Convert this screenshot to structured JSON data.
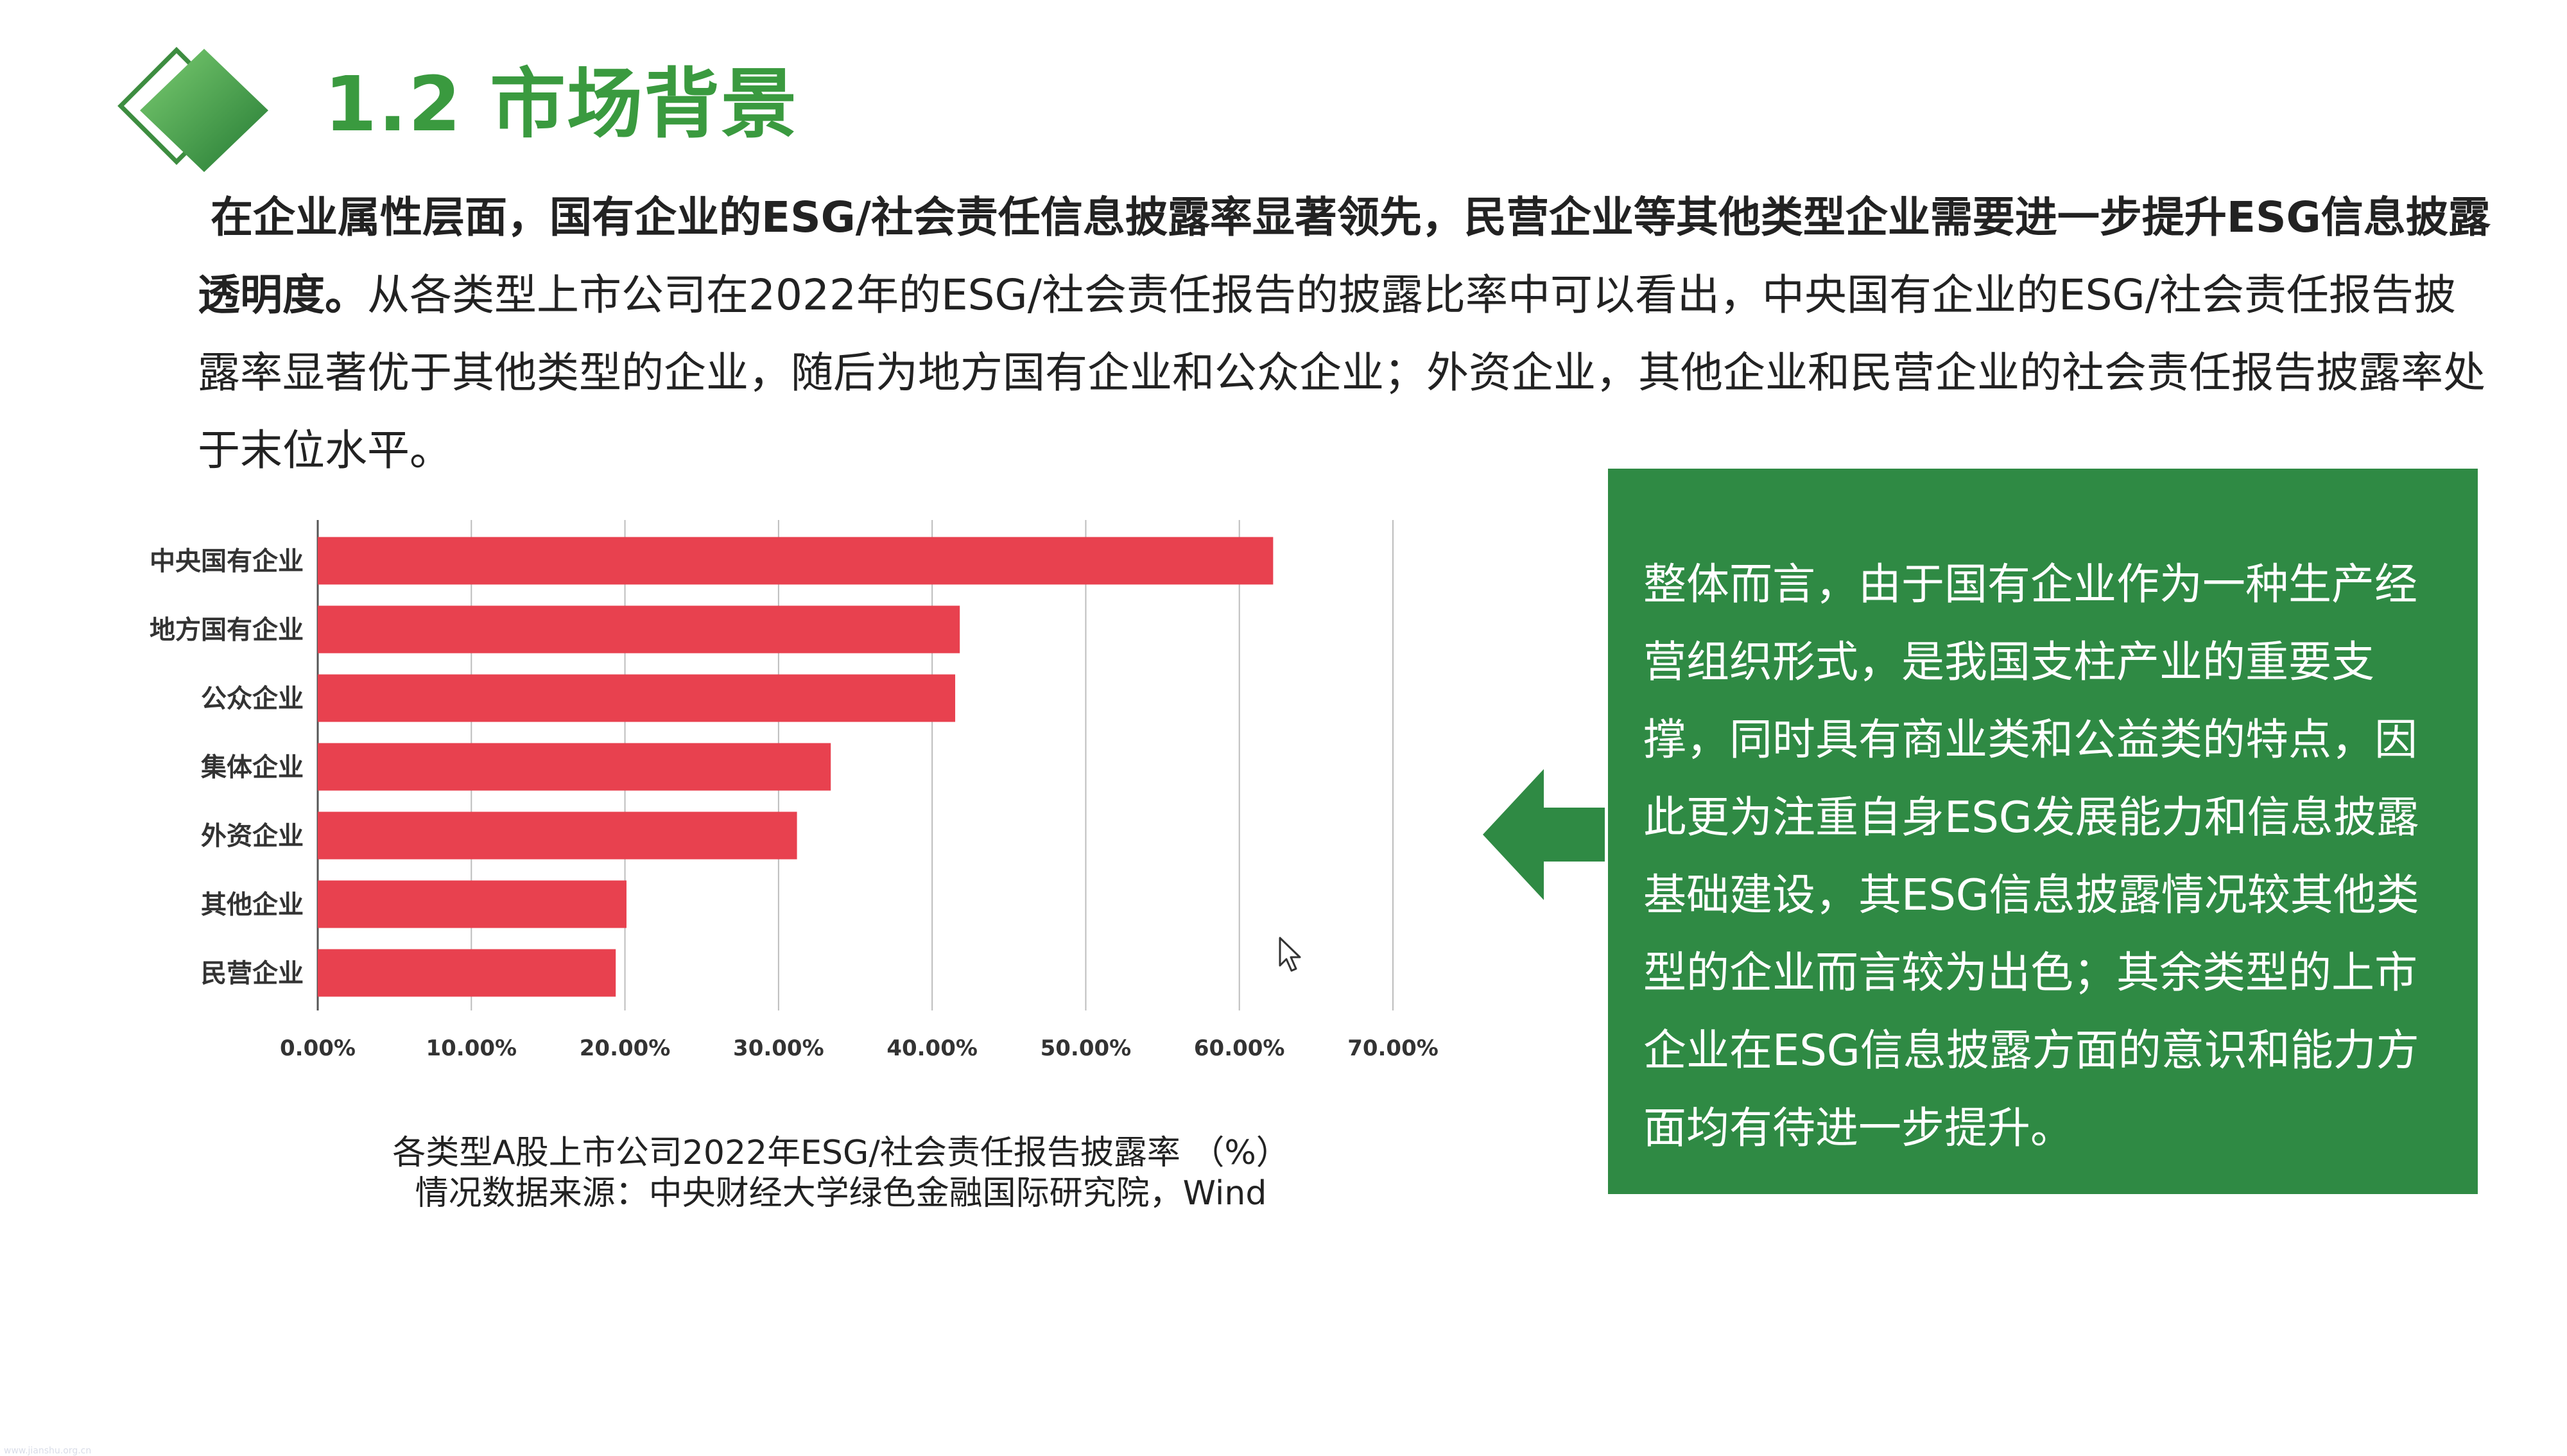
{
  "header": {
    "title": "1.2 市场背景"
  },
  "intro": {
    "bold_text": "在企业属性层面，国有企业的ESG/社会责任信息披露率显著领先，民营企业等其他类型企业需要进一步提升ESG信息披露透明度。",
    "body_text": "从各类型上市公司在2022年的ESG/社会责任报告的披露比率中可以看出，中央国有企业的ESG/社会责任报告披露率显著优于其他类型的企业，随后为地方国有企业和公众企业；外资企业，其他企业和民营企业的社会责任报告披露率处于末位水平。"
  },
  "chart_data": {
    "type": "bar",
    "orientation": "horizontal",
    "categories": [
      "中央国有企业",
      "地方国有企业",
      "公众企业",
      "集体企业",
      "外资企业",
      "其他企业",
      "民营企业"
    ],
    "values": [
      62.2,
      41.8,
      41.5,
      33.4,
      31.2,
      20.1,
      19.4
    ],
    "x_ticks": [
      "0.00%",
      "10.00%",
      "20.00%",
      "30.00%",
      "40.00%",
      "50.00%",
      "60.00%",
      "70.00%"
    ],
    "xlim": [
      0,
      70
    ],
    "grid": "vertical",
    "bar_color": "#e8414f"
  },
  "caption": {
    "line1": "各类型A股上市公司2022年ESG/社会责任报告披露率 （%）",
    "line2": "情况数据来源：中央财经大学绿色金融国际研究院，Wind"
  },
  "summary": {
    "text": "整体而言，由于国有企业作为一种生产经营组织形式，是我国支柱产业的重要支撑，同时具有商业类和公益类的特点，因此更为注重自身ESG发展能力和信息披露基础建设，其ESG信息披露情况较其他类型的企业而言较为出色；其余类型的上市企业在ESG信息披露方面的意识和能力方面均有待进一步提升。"
  },
  "theme": {
    "title_color": "#3a9a3f",
    "box_color": "#2f8a44",
    "arrow_color": "#2f8a44",
    "diamond_light": "#6cc070",
    "diamond_dark": "#2e8b3c"
  },
  "icons": {
    "logo": "diamond-logo-icon",
    "arrow": "left-arrow-icon",
    "cursor": "mouse-cursor-icon"
  },
  "watermark": "www.jianshu.org.cn"
}
